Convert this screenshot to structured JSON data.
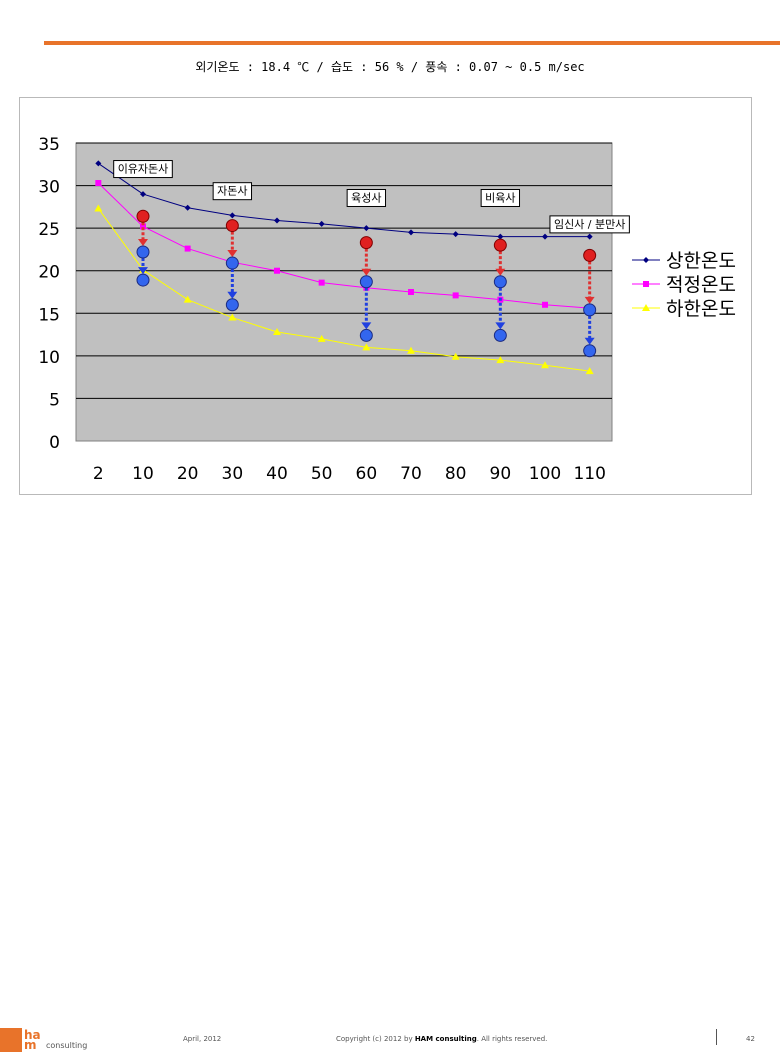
{
  "header": {
    "condition_text": "외기온도 : 18.4 ℃  / 습도 : 56 % / 풍속 : 0.07 ~ 0.5 m/sec"
  },
  "chart_data": {
    "type": "line",
    "categories": [
      "2",
      "10",
      "20",
      "30",
      "40",
      "50",
      "60",
      "70",
      "80",
      "90",
      "100",
      "110"
    ],
    "y_ticks": [
      "35",
      "30",
      "25",
      "20",
      "15",
      "10",
      "5",
      "0"
    ],
    "ylim": [
      0,
      35
    ],
    "grid": true,
    "legend_position": "right",
    "series": [
      {
        "name": "상한온도",
        "color": "#000080",
        "marker": "diamond",
        "values": [
          32.6,
          29.0,
          27.4,
          26.5,
          25.9,
          25.5,
          25.0,
          24.5,
          24.3,
          24.0,
          24.0,
          24.0
        ]
      },
      {
        "name": "적정온도",
        "color": "#ff00ff",
        "marker": "square",
        "values": [
          30.3,
          25.2,
          22.6,
          21.0,
          20.0,
          18.6,
          18.0,
          17.5,
          17.1,
          16.6,
          16.0,
          15.6
        ]
      },
      {
        "name": "하한온도",
        "color": "#ffff00",
        "marker": "triangle",
        "values": [
          27.3,
          20.1,
          16.6,
          14.5,
          12.8,
          12.0,
          11.0,
          10.6,
          9.9,
          9.5,
          8.9,
          8.2
        ]
      }
    ],
    "range_arrows": [
      {
        "category": "10",
        "top": 26.4,
        "mid": 22.2,
        "bottom": 18.9
      },
      {
        "category": "30",
        "top": 25.3,
        "mid": 20.9,
        "bottom": 16.0
      },
      {
        "category": "60",
        "top": 23.3,
        "mid": 18.7,
        "bottom": 12.4
      },
      {
        "category": "90",
        "top": 23.0,
        "mid": 18.7,
        "bottom": 12.4
      },
      {
        "category": "110",
        "top": 21.8,
        "mid": 15.4,
        "bottom": 10.6
      }
    ],
    "annotations": [
      {
        "text": "이유자돈사",
        "category": "10",
        "y": 32.0
      },
      {
        "text": "자돈사",
        "category": "30",
        "y": 29.4
      },
      {
        "text": "육성사",
        "category": "60",
        "y": 28.6
      },
      {
        "text": "비육사",
        "category": "90",
        "y": 28.6
      },
      {
        "text": "임신사 / 분만사",
        "category": "110",
        "y": 25.5
      }
    ]
  },
  "footer": {
    "logo_text_1": "ha",
    "logo_text_2": "m",
    "logo_sub": "consulting",
    "date": "April, 2012",
    "copyright_prefix": "Copyright (c) 2012 by ",
    "copyright_brand": "HAM consulting",
    "copyright_suffix": ". All rights reserved.",
    "page": "42"
  }
}
